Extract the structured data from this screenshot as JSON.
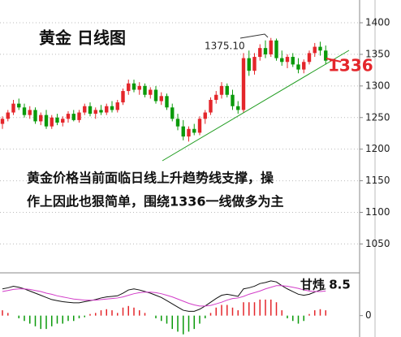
{
  "chart_data": {
    "type": "candlestick",
    "title": "黄金  日线图",
    "annotation_high": "1375.10",
    "annotation_support": "1336",
    "comment": [
      "黄金价格当前面临日线上升趋势线支撑，操",
      "作上因此也狠简单，围绕1336一线做多为主"
    ],
    "author": "甘炜  8.5",
    "up_color": "#e4262b",
    "down_color": "#0a9a0a",
    "ylim": [
      1012,
      1436
    ],
    "yticks": [
      1050,
      1100,
      1150,
      1200,
      1250,
      1300,
      1350,
      1400
    ],
    "grid": true,
    "candles": [
      [
        1240,
        1252,
        1232,
        1248
      ],
      [
        1248,
        1262,
        1244,
        1258
      ],
      [
        1258,
        1278,
        1254,
        1272
      ],
      [
        1272,
        1280,
        1262,
        1266
      ],
      [
        1266,
        1272,
        1250,
        1254
      ],
      [
        1254,
        1268,
        1248,
        1262
      ],
      [
        1262,
        1266,
        1240,
        1244
      ],
      [
        1244,
        1258,
        1238,
        1254
      ],
      [
        1254,
        1262,
        1232,
        1236
      ],
      [
        1236,
        1254,
        1232,
        1250
      ],
      [
        1250,
        1256,
        1238,
        1242
      ],
      [
        1242,
        1252,
        1236,
        1248
      ],
      [
        1248,
        1260,
        1242,
        1256
      ],
      [
        1256,
        1262,
        1244,
        1246
      ],
      [
        1246,
        1262,
        1242,
        1258
      ],
      [
        1258,
        1272,
        1254,
        1268
      ],
      [
        1268,
        1274,
        1252,
        1256
      ],
      [
        1256,
        1266,
        1248,
        1262
      ],
      [
        1262,
        1270,
        1254,
        1258
      ],
      [
        1258,
        1272,
        1254,
        1268
      ],
      [
        1268,
        1276,
        1258,
        1262
      ],
      [
        1262,
        1278,
        1258,
        1274
      ],
      [
        1274,
        1296,
        1270,
        1292
      ],
      [
        1292,
        1310,
        1286,
        1304
      ],
      [
        1304,
        1310,
        1290,
        1294
      ],
      [
        1294,
        1306,
        1286,
        1300
      ],
      [
        1300,
        1304,
        1282,
        1286
      ],
      [
        1286,
        1298,
        1280,
        1294
      ],
      [
        1294,
        1300,
        1272,
        1276
      ],
      [
        1276,
        1290,
        1270,
        1284
      ],
      [
        1284,
        1288,
        1262,
        1266
      ],
      [
        1266,
        1272,
        1244,
        1248
      ],
      [
        1248,
        1256,
        1230,
        1236
      ],
      [
        1236,
        1246,
        1214,
        1220
      ],
      [
        1220,
        1236,
        1212,
        1232
      ],
      [
        1232,
        1240,
        1222,
        1226
      ],
      [
        1226,
        1252,
        1222,
        1248
      ],
      [
        1248,
        1262,
        1240,
        1258
      ],
      [
        1258,
        1282,
        1254,
        1278
      ],
      [
        1278,
        1292,
        1272,
        1286
      ],
      [
        1286,
        1306,
        1280,
        1300
      ],
      [
        1300,
        1304,
        1282,
        1286
      ],
      [
        1286,
        1294,
        1262,
        1268
      ],
      [
        1268,
        1276,
        1256,
        1262
      ],
      [
        1262,
        1352,
        1258,
        1344
      ],
      [
        1344,
        1356,
        1316,
        1324
      ],
      [
        1324,
        1352,
        1318,
        1346
      ],
      [
        1346,
        1366,
        1340,
        1360
      ],
      [
        1360,
        1372,
        1344,
        1350
      ],
      [
        1350,
        1376,
        1346,
        1372
      ],
      [
        1372,
        1375,
        1340,
        1344
      ],
      [
        1344,
        1356,
        1332,
        1338
      ],
      [
        1338,
        1350,
        1328,
        1346
      ],
      [
        1346,
        1352,
        1330,
        1334
      ],
      [
        1334,
        1344,
        1320,
        1326
      ],
      [
        1326,
        1342,
        1320,
        1338
      ],
      [
        1338,
        1356,
        1334,
        1352
      ],
      [
        1352,
        1368,
        1346,
        1362
      ],
      [
        1362,
        1370,
        1348,
        1356
      ],
      [
        1356,
        1364,
        1334,
        1340
      ]
    ],
    "macd": {
      "y2lim": [
        -4,
        8
      ],
      "y2ticks": [
        0
      ],
      "hist": [
        1,
        0.5,
        0,
        -0.5,
        -1,
        -1.5,
        -2,
        -2.5,
        -2.5,
        -2,
        -1.5,
        -1.5,
        -1,
        -1,
        -0.5,
        -0.3,
        0.3,
        0.5,
        1,
        1.2,
        1,
        0.5,
        1.5,
        1.8,
        1.5,
        1,
        0.5,
        0,
        -0.5,
        -1,
        -1.5,
        -2.5,
        -3,
        -3.5,
        -3,
        -2.5,
        -1.5,
        -0.5,
        0.5,
        1.5,
        2,
        2,
        1.5,
        1,
        2.5,
        2.5,
        2.5,
        3,
        3,
        3,
        2.5,
        1,
        -0.5,
        -1,
        -1.5,
        -1,
        0.3,
        1,
        1.2,
        1
      ],
      "series": [
        {
          "color": "#111111",
          "values": [
            5,
            5.2,
            5.5,
            5.3,
            5,
            4.6,
            4.2,
            3.8,
            3.4,
            3,
            2.8,
            2.6,
            2.5,
            2.4,
            2.4,
            2.6,
            2.8,
            3,
            3.3,
            3.5,
            3.6,
            3.7,
            4.2,
            4.8,
            5,
            4.8,
            4.5,
            4.2,
            3.8,
            3.4,
            2.8,
            2.2,
            1.6,
            1,
            0.8,
            0.8,
            1.2,
            1.8,
            2.5,
            3.2,
            3.8,
            4,
            3.8,
            3.6,
            5,
            5.2,
            5.5,
            6,
            6.2,
            6.5,
            6.3,
            5.6,
            5,
            4.5,
            4,
            3.8,
            4,
            4.4,
            4.8,
            5
          ]
        },
        {
          "color": "#d23cc8",
          "values": [
            4.5,
            4.7,
            4.9,
            5,
            5,
            4.9,
            4.7,
            4.5,
            4.2,
            4,
            3.7,
            3.5,
            3.3,
            3.1,
            3,
            2.9,
            2.9,
            2.9,
            3,
            3.1,
            3.2,
            3.3,
            3.5,
            3.8,
            4.1,
            4.3,
            4.4,
            4.4,
            4.3,
            4.1,
            3.8,
            3.5,
            3.1,
            2.7,
            2.3,
            2,
            1.8,
            1.8,
            1.9,
            2.2,
            2.5,
            2.9,
            3.2,
            3.3,
            3.6,
            4,
            4.3,
            4.6,
            5,
            5.3,
            5.6,
            5.6,
            5.5,
            5.3,
            5.1,
            4.8,
            4.6,
            4.5,
            4.5,
            4.6
          ]
        }
      ]
    }
  }
}
